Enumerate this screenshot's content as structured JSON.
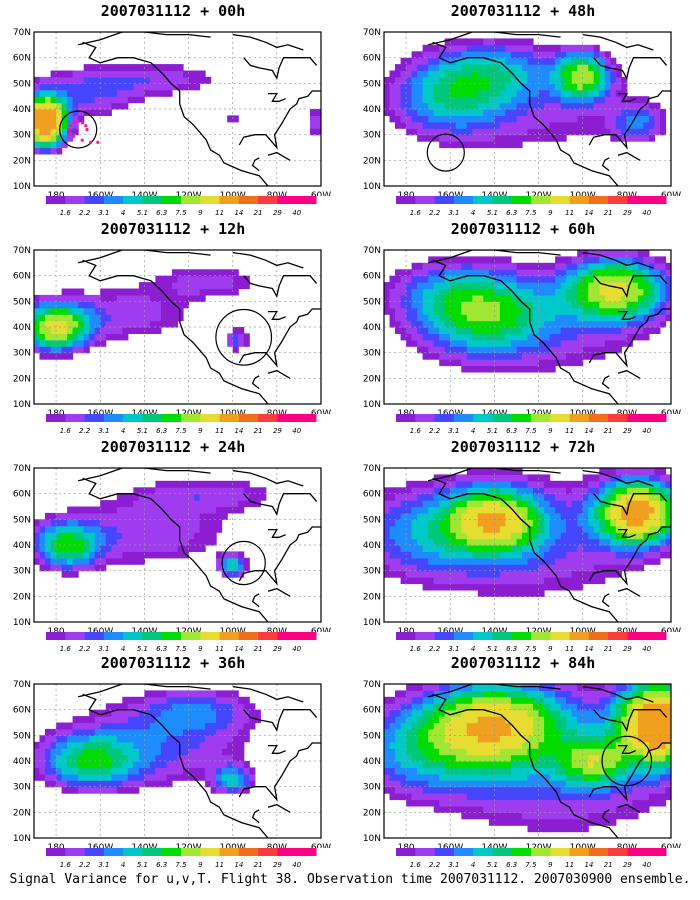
{
  "caption": "Signal Variance for u,v,T. Flight 38. Observation time 2007031112. 2007030900 ensemble.",
  "latitude_labels": [
    "70N",
    "60N",
    "50N",
    "40N",
    "30N",
    "20N",
    "10N"
  ],
  "longitude_labels": [
    "180",
    "160W",
    "140W",
    "120W",
    "100W",
    "80W",
    "60W"
  ],
  "legend": {
    "values": [
      "1.6",
      "2.2",
      "3.1",
      "4",
      "5.1",
      "6.3",
      "7.5",
      "9",
      "11",
      "14",
      "21",
      "29",
      "40"
    ],
    "colors": [
      "#8c1ed2",
      "#a03cf0",
      "#4646ff",
      "#1e8cff",
      "#00c8c8",
      "#00c87a",
      "#00dc00",
      "#a0e632",
      "#e6dc32",
      "#f0a01e",
      "#f06e1e",
      "#fa3c3c",
      "#ff0082"
    ]
  },
  "panels": [
    {
      "id": "p00",
      "title": "2007031112 + 00h",
      "lead": "00h",
      "has_circle": true,
      "circle": {
        "lon": -170,
        "lat": 32,
        "r_deg": 6
      },
      "dots": true
    },
    {
      "id": "p48",
      "title": "2007031112 + 48h",
      "lead": "48h",
      "has_circle": true,
      "circle": {
        "lon": -162,
        "lat": 23,
        "r_deg": 6
      }
    },
    {
      "id": "p12",
      "title": "2007031112 + 12h",
      "lead": "12h",
      "has_circle": true,
      "circle": {
        "lon": -95,
        "lat": 36,
        "r_deg": 9
      }
    },
    {
      "id": "p60",
      "title": "2007031112 + 60h",
      "lead": "60h",
      "has_circle": false
    },
    {
      "id": "p24",
      "title": "2007031112 + 24h",
      "lead": "24h",
      "has_circle": true,
      "circle": {
        "lon": -95,
        "lat": 33,
        "r_deg": 7
      }
    },
    {
      "id": "p72",
      "title": "2007031112 + 72h",
      "lead": "72h",
      "has_circle": false
    },
    {
      "id": "p36",
      "title": "2007031112 + 36h",
      "lead": "36h",
      "has_circle": false
    },
    {
      "id": "p84",
      "title": "2007031112 + 84h",
      "lead": "84h",
      "has_circle": true,
      "circle": {
        "lon": -80,
        "lat": 40,
        "r_deg": 8
      }
    }
  ],
  "chart_data": {
    "type": "heatmap",
    "projection": "lat-lon",
    "xlim": [
      -190,
      -60
    ],
    "ylim": [
      10,
      70
    ],
    "fields": {
      "00h": [
        {
          "lon": -185,
          "lat": 35,
          "sx": 6,
          "sy": 6,
          "amp": 20
        },
        {
          "lon": -170,
          "lat": 45,
          "sx": 20,
          "sy": 7,
          "amp": 3
        },
        {
          "lon": -135,
          "lat": 52,
          "sx": 25,
          "sy": 5,
          "amp": 2.6
        },
        {
          "lon": -100,
          "lat": 36,
          "sx": 2,
          "sy": 2,
          "amp": 2.6
        },
        {
          "lon": -62,
          "lat": 35,
          "sx": 3,
          "sy": 4,
          "amp": 3
        }
      ],
      "12h": [
        {
          "lon": -180,
          "lat": 40,
          "sx": 10,
          "sy": 6,
          "amp": 11
        },
        {
          "lon": -150,
          "lat": 45,
          "sx": 25,
          "sy": 8,
          "amp": 2.8
        },
        {
          "lon": -110,
          "lat": 58,
          "sx": 20,
          "sy": 5,
          "amp": 2.4
        },
        {
          "lon": -98,
          "lat": 35,
          "sx": 4,
          "sy": 3,
          "amp": 3.5
        }
      ],
      "24h": [
        {
          "lon": -175,
          "lat": 40,
          "sx": 10,
          "sy": 6,
          "amp": 7.5
        },
        {
          "lon": -140,
          "lat": 45,
          "sx": 30,
          "sy": 10,
          "amp": 3
        },
        {
          "lon": -110,
          "lat": 60,
          "sx": 25,
          "sy": 5,
          "amp": 2.4
        },
        {
          "lon": -100,
          "lat": 32,
          "sx": 4,
          "sy": 3,
          "amp": 6
        }
      ],
      "36h": [
        {
          "lon": -165,
          "lat": 40,
          "sx": 15,
          "sy": 7,
          "amp": 6.5
        },
        {
          "lon": -135,
          "lat": 47,
          "sx": 30,
          "sy": 12,
          "amp": 3.5
        },
        {
          "lon": -100,
          "lat": 33,
          "sx": 6,
          "sy": 4,
          "amp": 5
        },
        {
          "lon": -115,
          "lat": 60,
          "sx": 18,
          "sy": 6,
          "amp": 3
        }
      ],
      "48h": [
        {
          "lon": -160,
          "lat": 45,
          "sx": 18,
          "sy": 10,
          "amp": 5
        },
        {
          "lon": -140,
          "lat": 55,
          "sx": 20,
          "sy": 8,
          "amp": 4
        },
        {
          "lon": -100,
          "lat": 53,
          "sx": 8,
          "sy": 6,
          "amp": 9
        },
        {
          "lon": -75,
          "lat": 35,
          "sx": 8,
          "sy": 5,
          "amp": 3.5
        },
        {
          "lon": -120,
          "lat": 40,
          "sx": 40,
          "sy": 15,
          "amp": 2.2
        }
      ],
      "60h": [
        {
          "lon": -145,
          "lat": 45,
          "sx": 20,
          "sy": 10,
          "amp": 6.5
        },
        {
          "lon": -85,
          "lat": 55,
          "sx": 15,
          "sy": 8,
          "amp": 11
        },
        {
          "lon": -160,
          "lat": 55,
          "sx": 20,
          "sy": 8,
          "amp": 3
        },
        {
          "lon": -120,
          "lat": 40,
          "sx": 40,
          "sy": 15,
          "amp": 2.6
        }
      ],
      "72h": [
        {
          "lon": -140,
          "lat": 50,
          "sx": 14,
          "sy": 8,
          "amp": 11
        },
        {
          "lon": -75,
          "lat": 53,
          "sx": 12,
          "sy": 8,
          "amp": 15
        },
        {
          "lon": -170,
          "lat": 45,
          "sx": 25,
          "sy": 12,
          "amp": 4
        },
        {
          "lon": -120,
          "lat": 42,
          "sx": 40,
          "sy": 18,
          "amp": 3
        }
      ],
      "84h": [
        {
          "lon": -140,
          "lat": 55,
          "sx": 20,
          "sy": 10,
          "amp": 11
        },
        {
          "lon": -65,
          "lat": 55,
          "sx": 12,
          "sy": 10,
          "amp": 18
        },
        {
          "lon": -170,
          "lat": 45,
          "sx": 25,
          "sy": 12,
          "amp": 5
        },
        {
          "lon": -110,
          "lat": 40,
          "sx": 40,
          "sy": 20,
          "amp": 4
        },
        {
          "lon": -95,
          "lat": 40,
          "sx": 10,
          "sy": 6,
          "amp": 7
        }
      ]
    }
  }
}
